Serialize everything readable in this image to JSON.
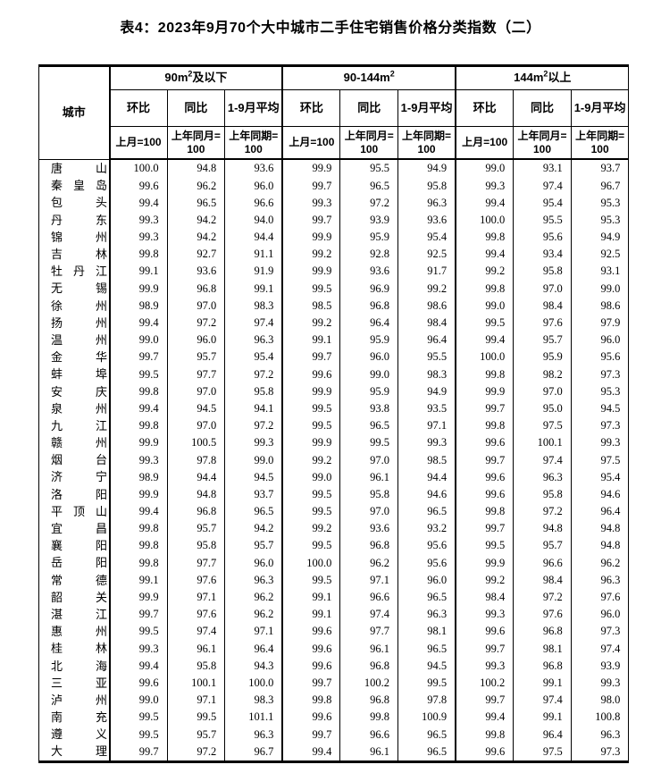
{
  "page": {
    "title": "表4：2023年9月70个大中城市二手住宅销售价格分类指数（二）"
  },
  "table": {
    "city_header": "城市",
    "groups": [
      {
        "prefix": "90m",
        "superscript": "2",
        "suffix": "及以下"
      },
      {
        "prefix": "90-144m",
        "superscript": "2",
        "suffix": ""
      },
      {
        "prefix": "144m",
        "superscript": "2",
        "suffix": "以上"
      }
    ],
    "subcols": [
      {
        "label": "环比",
        "base": "上月=100"
      },
      {
        "label": "同比",
        "base": "上年同月=100"
      },
      {
        "label": "1-9月平均",
        "base": "上年同期=100"
      }
    ],
    "rows": [
      {
        "city": "唐山",
        "values": [
          "100.0",
          "94.8",
          "93.6",
          "99.9",
          "95.5",
          "94.9",
          "99.0",
          "93.1",
          "93.7"
        ]
      },
      {
        "city": "秦皇岛",
        "values": [
          "99.6",
          "96.2",
          "96.0",
          "99.7",
          "96.5",
          "95.8",
          "99.3",
          "97.4",
          "96.7"
        ]
      },
      {
        "city": "包头",
        "values": [
          "99.4",
          "96.5",
          "96.6",
          "99.3",
          "97.2",
          "96.3",
          "99.4",
          "95.4",
          "95.3"
        ]
      },
      {
        "city": "丹东",
        "values": [
          "99.3",
          "94.2",
          "94.0",
          "99.7",
          "93.9",
          "93.6",
          "100.0",
          "95.5",
          "95.3"
        ]
      },
      {
        "city": "锦州",
        "values": [
          "99.3",
          "94.2",
          "94.4",
          "99.9",
          "95.9",
          "95.4",
          "99.8",
          "95.6",
          "94.9"
        ]
      },
      {
        "city": "吉林",
        "values": [
          "99.8",
          "92.7",
          "91.1",
          "99.2",
          "92.8",
          "92.5",
          "99.4",
          "93.4",
          "92.5"
        ]
      },
      {
        "city": "牡丹江",
        "values": [
          "99.1",
          "93.6",
          "91.9",
          "99.9",
          "93.6",
          "91.7",
          "99.2",
          "95.8",
          "93.1"
        ]
      },
      {
        "city": "无锡",
        "values": [
          "99.9",
          "96.8",
          "99.1",
          "99.5",
          "96.9",
          "99.2",
          "99.8",
          "97.0",
          "99.0"
        ]
      },
      {
        "city": "徐州",
        "values": [
          "98.9",
          "97.0",
          "98.3",
          "98.5",
          "96.8",
          "98.6",
          "99.0",
          "98.4",
          "98.6"
        ]
      },
      {
        "city": "扬州",
        "values": [
          "99.4",
          "97.2",
          "97.4",
          "99.2",
          "96.4",
          "98.4",
          "99.5",
          "97.6",
          "97.9"
        ]
      },
      {
        "city": "温州",
        "values": [
          "99.0",
          "96.0",
          "96.3",
          "99.1",
          "95.9",
          "96.4",
          "99.4",
          "95.7",
          "96.0"
        ]
      },
      {
        "city": "金华",
        "values": [
          "99.7",
          "95.7",
          "95.4",
          "99.7",
          "96.0",
          "95.5",
          "100.0",
          "95.9",
          "95.6"
        ]
      },
      {
        "city": "蚌埠",
        "values": [
          "99.5",
          "97.7",
          "97.2",
          "99.6",
          "99.0",
          "98.3",
          "99.8",
          "98.2",
          "97.3"
        ]
      },
      {
        "city": "安庆",
        "values": [
          "99.8",
          "97.0",
          "95.8",
          "99.9",
          "95.9",
          "94.9",
          "99.9",
          "97.0",
          "95.3"
        ]
      },
      {
        "city": "泉州",
        "values": [
          "99.4",
          "94.5",
          "94.1",
          "99.5",
          "93.8",
          "93.5",
          "99.7",
          "95.0",
          "94.5"
        ]
      },
      {
        "city": "九江",
        "values": [
          "99.8",
          "97.0",
          "97.2",
          "99.5",
          "96.5",
          "97.1",
          "99.8",
          "97.5",
          "97.3"
        ]
      },
      {
        "city": "赣州",
        "values": [
          "99.9",
          "100.5",
          "99.3",
          "99.9",
          "99.5",
          "99.3",
          "99.6",
          "100.1",
          "99.3"
        ]
      },
      {
        "city": "烟台",
        "values": [
          "99.3",
          "97.8",
          "99.0",
          "99.2",
          "97.0",
          "98.5",
          "99.7",
          "97.4",
          "97.5"
        ]
      },
      {
        "city": "济宁",
        "values": [
          "98.9",
          "94.4",
          "94.5",
          "99.0",
          "96.1",
          "94.4",
          "99.6",
          "96.3",
          "95.4"
        ]
      },
      {
        "city": "洛阳",
        "values": [
          "99.9",
          "94.8",
          "93.7",
          "99.5",
          "95.8",
          "94.6",
          "99.6",
          "95.8",
          "94.6"
        ]
      },
      {
        "city": "平顶山",
        "values": [
          "99.4",
          "96.8",
          "96.5",
          "99.5",
          "97.0",
          "96.5",
          "99.8",
          "97.2",
          "96.4"
        ]
      },
      {
        "city": "宜昌",
        "values": [
          "99.8",
          "95.7",
          "94.2",
          "99.2",
          "93.6",
          "93.2",
          "99.7",
          "94.8",
          "94.8"
        ]
      },
      {
        "city": "襄阳",
        "values": [
          "99.8",
          "95.8",
          "95.7",
          "99.5",
          "96.8",
          "95.6",
          "99.5",
          "95.7",
          "94.8"
        ]
      },
      {
        "city": "岳阳",
        "values": [
          "99.8",
          "97.7",
          "96.0",
          "100.0",
          "96.2",
          "95.6",
          "99.9",
          "96.6",
          "96.2"
        ]
      },
      {
        "city": "常德",
        "values": [
          "99.1",
          "97.6",
          "96.3",
          "99.5",
          "97.1",
          "96.0",
          "99.2",
          "98.4",
          "96.3"
        ]
      },
      {
        "city": "韶关",
        "values": [
          "99.9",
          "97.1",
          "96.2",
          "99.1",
          "96.6",
          "96.5",
          "98.4",
          "97.2",
          "97.6"
        ]
      },
      {
        "city": "湛江",
        "values": [
          "99.7",
          "97.6",
          "96.2",
          "99.1",
          "97.4",
          "96.3",
          "99.3",
          "97.6",
          "96.0"
        ]
      },
      {
        "city": "惠州",
        "values": [
          "99.5",
          "97.4",
          "97.1",
          "99.6",
          "97.7",
          "98.1",
          "99.6",
          "96.8",
          "97.3"
        ]
      },
      {
        "city": "桂林",
        "values": [
          "99.3",
          "96.1",
          "96.4",
          "99.6",
          "96.1",
          "96.5",
          "99.7",
          "98.1",
          "97.4"
        ]
      },
      {
        "city": "北海",
        "values": [
          "99.4",
          "95.8",
          "94.3",
          "99.6",
          "96.8",
          "94.5",
          "99.3",
          "96.8",
          "93.9"
        ]
      },
      {
        "city": "三亚",
        "values": [
          "99.6",
          "100.1",
          "100.0",
          "99.7",
          "100.2",
          "99.5",
          "100.2",
          "99.1",
          "99.3"
        ]
      },
      {
        "city": "泸州",
        "values": [
          "99.0",
          "97.1",
          "98.3",
          "99.8",
          "96.8",
          "97.8",
          "99.7",
          "97.4",
          "98.0"
        ]
      },
      {
        "city": "南充",
        "values": [
          "99.5",
          "99.5",
          "101.1",
          "99.6",
          "99.8",
          "100.9",
          "99.4",
          "99.1",
          "100.8"
        ]
      },
      {
        "city": "遵义",
        "values": [
          "99.5",
          "95.7",
          "96.3",
          "99.7",
          "96.6",
          "96.5",
          "99.8",
          "96.4",
          "96.3"
        ]
      },
      {
        "city": "大理",
        "values": [
          "99.7",
          "97.2",
          "96.7",
          "99.4",
          "96.1",
          "96.5",
          "99.6",
          "97.5",
          "97.3"
        ]
      }
    ]
  }
}
